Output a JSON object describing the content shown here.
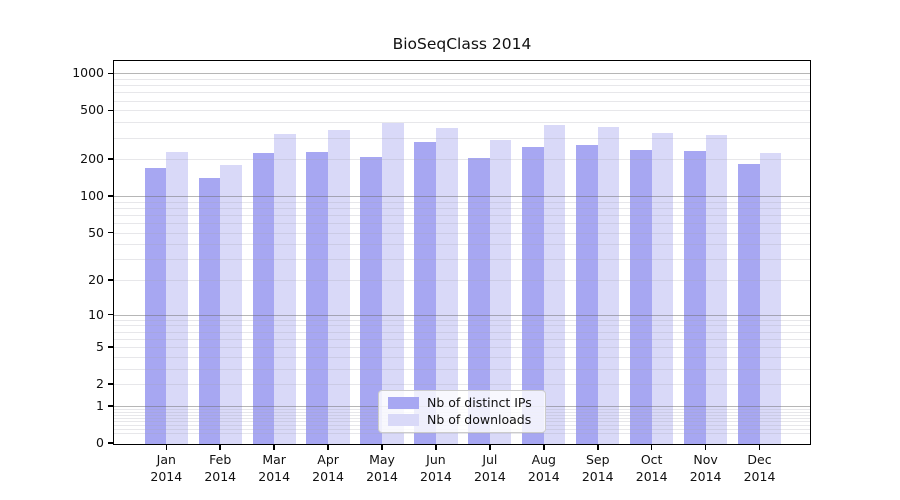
{
  "title": "BioSeqClass 2014",
  "chart_data": {
    "type": "bar",
    "title": "BioSeqClass 2014",
    "y_scale": "log10(1+x)",
    "grid": true,
    "legend_position": "lower-center",
    "categories": [
      "Jan",
      "Feb",
      "Mar",
      "Apr",
      "May",
      "Jun",
      "Jul",
      "Aug",
      "Sep",
      "Oct",
      "Nov",
      "Dec"
    ],
    "category_year": "2014",
    "series": [
      {
        "name": "Nb of distinct IPs",
        "color": "#a7a7f2",
        "values": [
          170,
          140,
          225,
          230,
          210,
          275,
          205,
          250,
          262,
          240,
          232,
          183
        ]
      },
      {
        "name": "Nb of downloads",
        "color": "#d9d9f8",
        "values": [
          230,
          180,
          320,
          345,
          395,
          358,
          288,
          380,
          363,
          325,
          317,
          226
        ]
      }
    ],
    "y_ticks": [
      1000,
      500,
      200,
      100,
      50,
      20,
      10,
      5,
      2,
      1,
      0
    ],
    "y_major_gridlines": [
      1,
      10,
      100,
      1000
    ],
    "ylim": [
      0,
      1283
    ],
    "xlabel": "",
    "ylabel": ""
  }
}
